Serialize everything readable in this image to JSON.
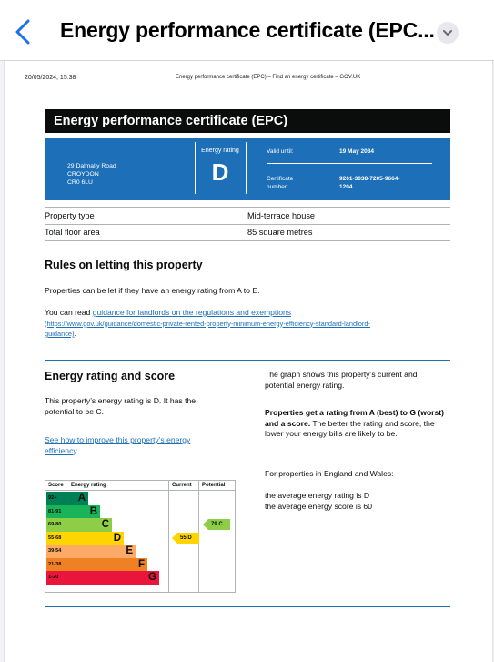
{
  "app": {
    "title": "Energy performance certificate (EPC..."
  },
  "print_header": {
    "date": "20/05/2024, 15:38",
    "title": "Energy performance certificate (EPC) – Find an energy certificate – GOV.UK"
  },
  "certificate": {
    "heading": "Energy performance certificate (EPC)",
    "address": [
      "29 Dalmally Road",
      "CROYDON",
      "CR0 6LU"
    ],
    "rating_label": "Energy rating",
    "rating": "D",
    "valid_until_label": "Valid until:",
    "valid_until": "19 May 2034",
    "cert_number_label_1": "Certificate",
    "cert_number_label_2": "number:",
    "cert_number_1": "9261-3038-7205-9664-",
    "cert_number_2": "1204"
  },
  "property": {
    "rows": [
      {
        "key": "Property type",
        "value": "Mid-terrace house"
      },
      {
        "key": "Total floor area",
        "value": "85 square metres"
      }
    ]
  },
  "letting": {
    "heading": "Rules on letting this property",
    "p1": "Properties can be let if they have an energy rating from A to E.",
    "p2_prefix": "You can read ",
    "p2_link": "guidance for landlords on the regulations and exemptions",
    "p2_url_1": "(https://www.gov.uk/guidance/domestic-private-rented-property-minimum-energy-efficiency-standard-landlord-",
    "p2_url_2": "guidance)",
    "p2_suffix": "."
  },
  "score": {
    "heading": "Energy rating and score",
    "p1": "This property’s energy rating is D. It has the potential to be C.",
    "link": "See how to improve this property’s energy efficiency",
    "link_suffix": ".",
    "right_p1": "The graph shows this property’s current and potential energy rating.",
    "right_p2_bold": "Properties get a rating from A (best) to G (worst) and a score.",
    "right_p2_rest": " The better the rating and score, the lower your energy bills are likely to be.",
    "right_p3": "For properties in England and Wales:",
    "right_p4a": "the average energy rating is D",
    "right_p4b": "the average energy score is 60"
  },
  "chart_data": {
    "type": "table",
    "headers": {
      "score": "Score",
      "rating": "Energy rating",
      "current": "Current",
      "potential": "Potential"
    },
    "bands": [
      {
        "range": "92+",
        "letter": "A",
        "color": "#008054",
        "text": "#0b0c0c"
      },
      {
        "range": "81-91",
        "letter": "B",
        "color": "#19b459"
      },
      {
        "range": "69-80",
        "letter": "C",
        "color": "#8dce46"
      },
      {
        "range": "55-68",
        "letter": "D",
        "color": "#ffd500"
      },
      {
        "range": "39-54",
        "letter": "E",
        "color": "#fcaa65"
      },
      {
        "range": "21-38",
        "letter": "F",
        "color": "#ef8023"
      },
      {
        "range": "1-20",
        "letter": "G",
        "color": "#e9153b"
      }
    ],
    "current": {
      "score": 55,
      "letter": "D",
      "label": "55 D",
      "color": "#ffd500"
    },
    "potential": {
      "score": 79,
      "letter": "C",
      "label": "79 C",
      "color": "#8dce46"
    }
  }
}
